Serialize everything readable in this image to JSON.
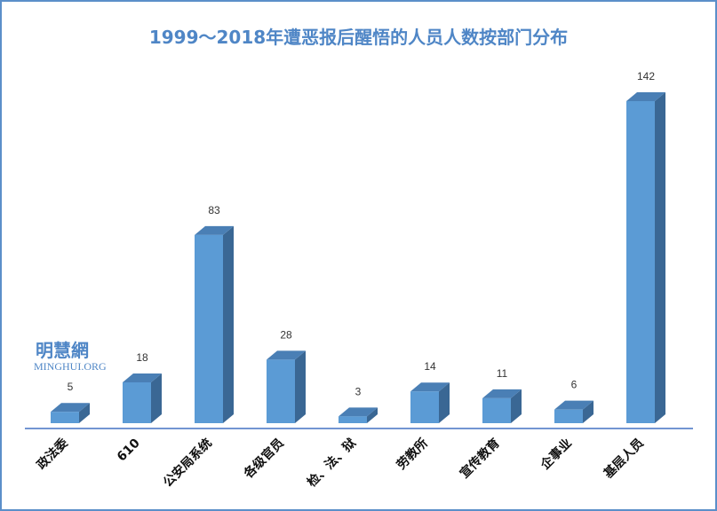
{
  "chart_data": {
    "type": "bar",
    "title": "1999～2018年遭恶报后醒悟的人员人数按部门分布",
    "categories": [
      "政法委",
      "610",
      "公安局系统",
      "各级官员",
      "检、法、狱",
      "劳教所",
      "宣传教育",
      "企事业",
      "基层人员"
    ],
    "values": [
      5,
      18,
      83,
      28,
      3,
      14,
      11,
      6,
      142
    ],
    "data_labels": [
      "5",
      "18",
      "83",
      "28",
      "3",
      "14",
      "11",
      "6",
      "142"
    ],
    "xlabel": "",
    "ylabel": "",
    "ylim": [
      0,
      150
    ],
    "grid": false,
    "legend": "none",
    "colors": {
      "bar_front": "#5b9bd5",
      "bar_top": "#4a7fb5",
      "bar_side": "#3a6794",
      "axis": "#4472c4",
      "title": "#4f86c6",
      "border": "#5b8fc9"
    }
  },
  "watermark": {
    "chinese": "明慧網",
    "english": "MINGHUI.ORG"
  }
}
